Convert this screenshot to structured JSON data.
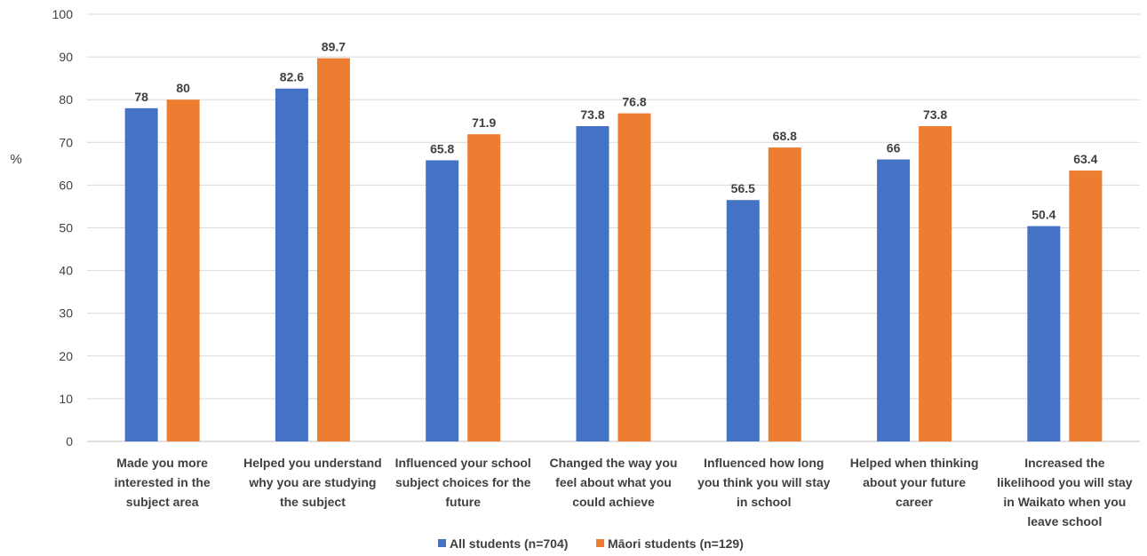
{
  "chart_data": {
    "type": "bar",
    "title": "",
    "xlabel": "",
    "ylabel": "%",
    "ylim": [
      0,
      100
    ],
    "yticks": [
      0,
      10,
      20,
      30,
      40,
      50,
      60,
      70,
      80,
      90,
      100
    ],
    "grid": true,
    "legend_position": "bottom",
    "categories": [
      [
        "Made you more",
        "interested in the",
        "subject area"
      ],
      [
        "Helped you understand",
        "why you are studying",
        "the subject"
      ],
      [
        "Influenced your school",
        "subject choices for the",
        "future"
      ],
      [
        "Changed the way you",
        "feel about what you",
        "could achieve"
      ],
      [
        "Influenced how long",
        "you think you will stay",
        "in school"
      ],
      [
        "Helped when thinking",
        "about your future",
        "career"
      ],
      [
        "Increased the",
        "likelihood you will stay",
        "in Waikato when you",
        "leave school"
      ]
    ],
    "series": [
      {
        "name": "All students (n=704)",
        "color": "#4472C4",
        "values": [
          78,
          82.6,
          65.8,
          73.8,
          56.5,
          66,
          50.4
        ]
      },
      {
        "name": "Māori students (n=129)",
        "color": "#ED7D31",
        "values": [
          80,
          89.7,
          71.9,
          76.8,
          68.8,
          73.8,
          63.4
        ]
      }
    ]
  }
}
